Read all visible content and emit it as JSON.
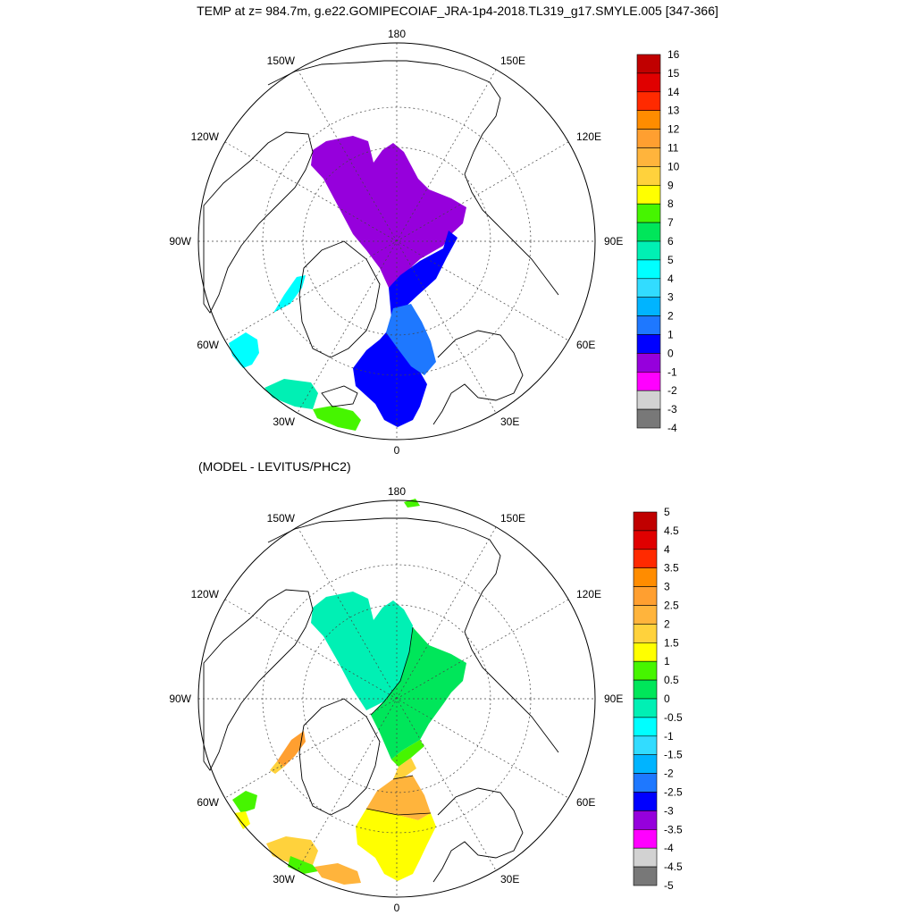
{
  "title": "TEMP at z= 984.7m, g.e22.GOMIPECOIAF_JRA-1p4-2018.TL319_g17.SMYLE.005 [347-366]",
  "panels": [
    {
      "subtitle": "",
      "lon_labels": {
        "top": "180",
        "bottom": "0",
        "left": "90W",
        "right": "90E",
        "upper_left_outer": "150W",
        "upper_right_outer": "150E",
        "upper_left_inner": "120W",
        "upper_right_inner": "120E",
        "lower_left_inner": "60W",
        "lower_right_inner": "60E",
        "lower_left_outer": "30W",
        "lower_right_outer": "30E"
      },
      "colorbar": {
        "labels": [
          "16",
          "15",
          "14",
          "13",
          "12",
          "11",
          "10",
          "9",
          "8",
          "7",
          "6",
          "5",
          "4",
          "3",
          "2",
          "1",
          "0",
          "-1",
          "-2",
          "-3",
          "-4"
        ],
        "colors": [
          "#c00000",
          "#e00000",
          "#ff2a00",
          "#ff8c00",
          "#ff9f30",
          "#ffb43c",
          "#ffd23c",
          "#ffff00",
          "#46f500",
          "#00e65a",
          "#00f0b4",
          "#00ffff",
          "#32dcff",
          "#00b4ff",
          "#1e78ff",
          "#0000ff",
          "#9600dc",
          "#ff00ff",
          "#d2d2d2",
          "#787878"
        ]
      }
    },
    {
      "subtitle": "(MODEL - LEVITUS/PHC2)",
      "lon_labels": {
        "top": "180",
        "bottom": "0",
        "left": "90W",
        "right": "90E",
        "upper_left_outer": "150W",
        "upper_right_outer": "150E",
        "upper_left_inner": "120W",
        "upper_right_inner": "120E",
        "lower_left_inner": "60W",
        "lower_right_inner": "60E",
        "lower_left_outer": "30W",
        "lower_right_outer": "30E"
      },
      "colorbar": {
        "labels": [
          "5",
          "4.5",
          "4",
          "3.5",
          "3",
          "2.5",
          "2",
          "1.5",
          "1",
          "0.5",
          "0",
          "-0.5",
          "-1",
          "-1.5",
          "-2",
          "-2.5",
          "-3",
          "-3.5",
          "-4",
          "-4.5",
          "-5"
        ],
        "colors": [
          "#c00000",
          "#e00000",
          "#ff2a00",
          "#ff8c00",
          "#ff9f30",
          "#ffb43c",
          "#ffd23c",
          "#ffff00",
          "#46f500",
          "#00e65a",
          "#00f0b4",
          "#00ffff",
          "#32dcff",
          "#00b4ff",
          "#1e78ff",
          "#0000ff",
          "#9600dc",
          "#ff00ff",
          "#d2d2d2",
          "#787878"
        ]
      }
    }
  ]
}
